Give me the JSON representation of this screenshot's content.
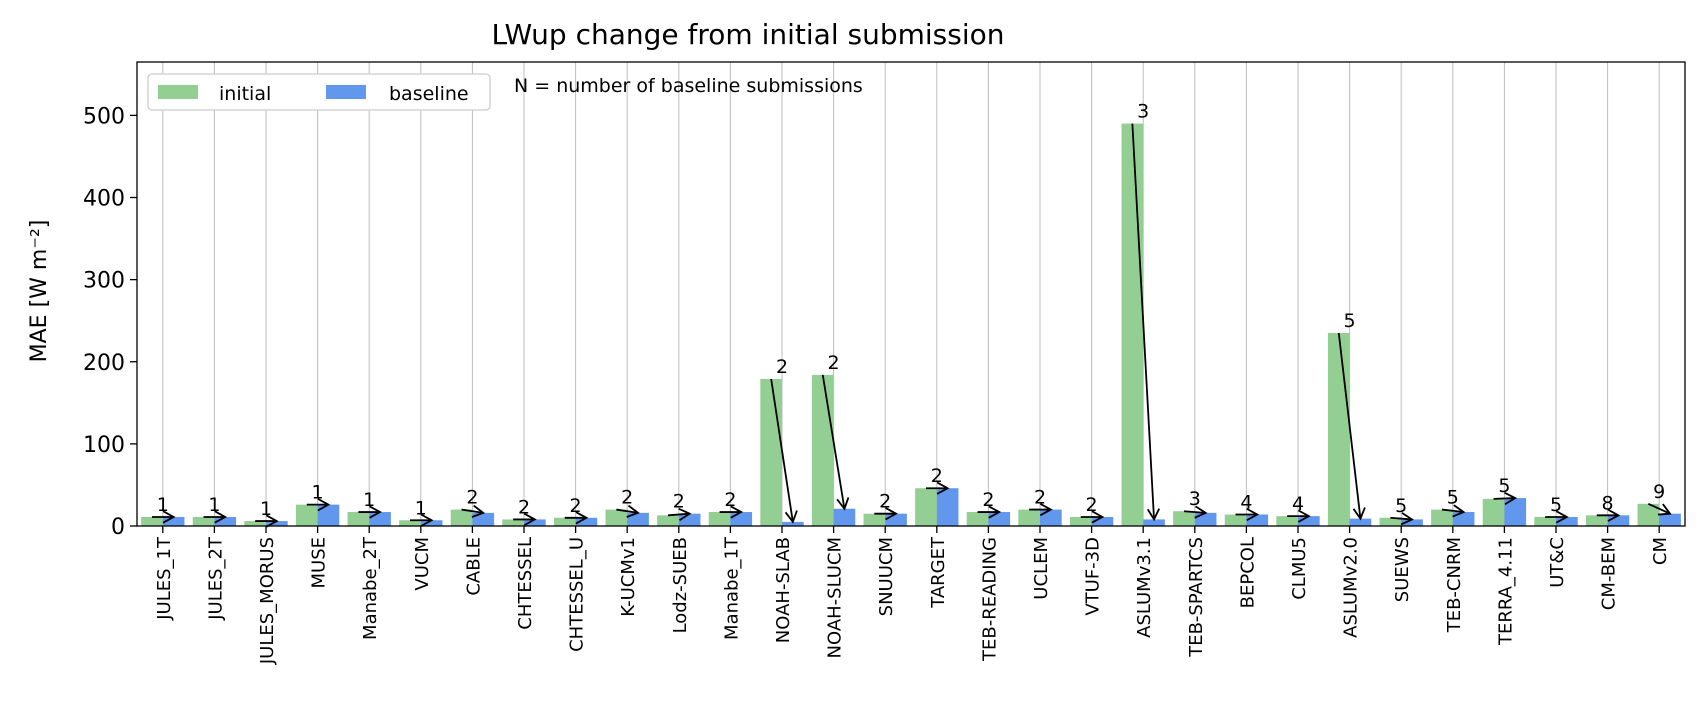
{
  "chart_data": {
    "type": "bar",
    "title": "LWup change from initial submission",
    "xlabel": "",
    "ylabel": "MAE [W m⁻²]",
    "ylim": [
      0,
      565
    ],
    "yticks": [
      0,
      100,
      200,
      300,
      400,
      500
    ],
    "grid": "vertical",
    "legend_position": "top-left",
    "annotation": "N = number of baseline submissions",
    "categories": [
      "JULES_1T",
      "JULES_2T",
      "JULES_MORUS",
      "MUSE",
      "Manabe_2T",
      "VUCM",
      "CABLE",
      "CHTESSEL",
      "CHTESSEL_U",
      "K-UCMv1",
      "Lodz-SUEB",
      "Manabe_1T",
      "NOAH-SLAB",
      "NOAH-SLUCM",
      "SNUUCM",
      "TARGET",
      "TEB-READING",
      "UCLEM",
      "VTUF-3D",
      "ASLUMv3.1",
      "TEB-SPARTCS",
      "BEPCOL",
      "CLMU5",
      "ASLUMv2.0",
      "SUEWS",
      "TEB-CNRM",
      "TERRA_4.11",
      "UT&C",
      "CM-BEM",
      "CM"
    ],
    "series": [
      {
        "name": "initial",
        "color": "#93cf93",
        "values": [
          11,
          11,
          6,
          26,
          17,
          7,
          20,
          8,
          10,
          20,
          13,
          17,
          179,
          184,
          15,
          46,
          17,
          20,
          11,
          490,
          18,
          14,
          12,
          235,
          10,
          20,
          33,
          11,
          13,
          27
        ]
      },
      {
        "name": "baseline",
        "color": "#6197ec",
        "values": [
          11,
          11,
          6,
          26,
          17,
          7,
          16,
          8,
          10,
          16,
          15,
          17,
          5,
          21,
          15,
          46,
          17,
          20,
          11,
          8,
          16,
          14,
          12,
          9,
          8,
          17,
          34,
          11,
          13,
          15
        ]
      }
    ],
    "n_labels": [
      "1",
      "1",
      "1",
      "1",
      "1",
      "1",
      "2",
      "2",
      "2",
      "2",
      "2",
      "2",
      "2",
      "2",
      "2",
      "2",
      "2",
      "2",
      "2",
      "3",
      "3",
      "4",
      "4",
      "5",
      "5",
      "5",
      "5",
      "5",
      "8",
      "9"
    ]
  }
}
